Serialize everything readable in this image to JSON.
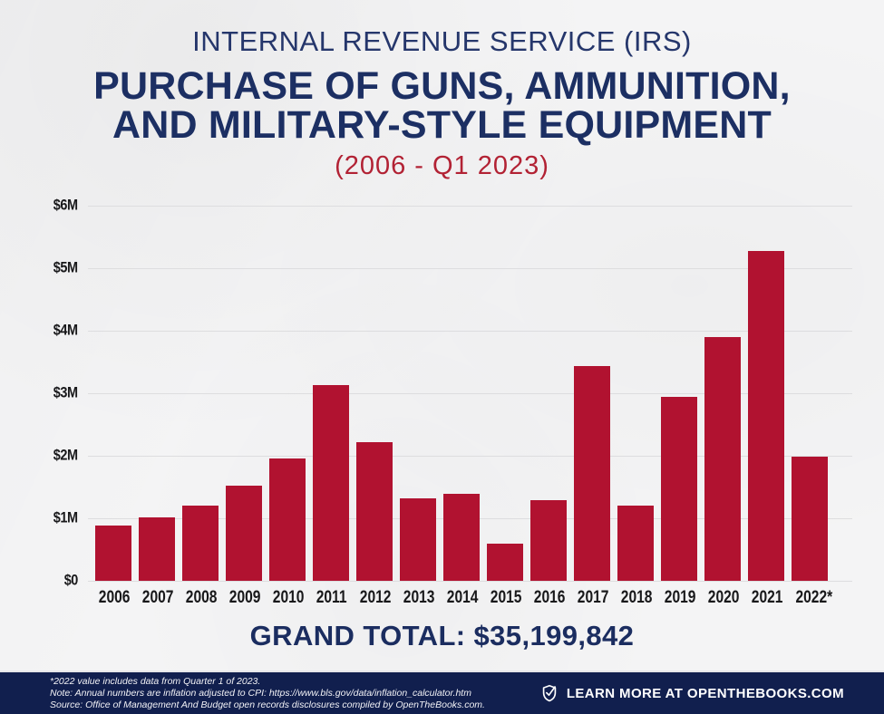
{
  "poster": {
    "title_top": "INTERNAL REVENUE SERVICE (IRS)",
    "title_main_line1": "PURCHASE OF GUNS, AMMUNITION,",
    "title_main_line2": "AND MILITARY-STYLE EQUIPMENT",
    "subtitle": "(2006 - Q1 2023)",
    "grand_total": "GRAND TOTAL: $35,199,842"
  },
  "chart_data": {
    "type": "bar",
    "title": "Internal Revenue Service (IRS) purchase of guns, ammunition, and military-style equipment (2006 - Q1 2023)",
    "categories": [
      "2006",
      "2007",
      "2008",
      "2009",
      "2010",
      "2011",
      "2012",
      "2013",
      "2014",
      "2015",
      "2016",
      "2017",
      "2018",
      "2019",
      "2020",
      "2021",
      "2022*"
    ],
    "values": [
      0.88,
      1.02,
      1.2,
      1.52,
      1.95,
      3.13,
      2.22,
      1.32,
      1.39,
      0.6,
      1.29,
      3.43,
      1.2,
      2.94,
      3.9,
      5.27,
      1.98
    ],
    "values_unit": "USD millions",
    "xlabel": "",
    "ylabel": "",
    "ylim": [
      0,
      6
    ],
    "y_ticks": [
      "$6M",
      "$5M",
      "$4M",
      "$3M",
      "$2M",
      "$1M",
      "$0"
    ],
    "grid": true,
    "legend_position": "none",
    "bar_color": "#B11230",
    "grand_total_usd": "$35,199,842"
  },
  "footer": {
    "note1": "*2022 value includes data from Quarter 1 of 2023.",
    "note2": "Note: Annual numbers are inflation adjusted to CPI: https://www.bls.gov/data/inflation_calculator.htm",
    "note3": "Source: Office of Management And Budget open records disclosures compiled by OpenTheBooks.com.",
    "cta": "LEARN MORE AT OPENTHEBOOKS.COM"
  },
  "colors": {
    "navy_title": "#1C2F63",
    "navy_light": "#25366B",
    "red_bar": "#B11230",
    "red_subtitle": "#B22234",
    "footer_bg": "#111F4E",
    "background": "#F4F4F5",
    "gridline": "#DDDDDF"
  }
}
